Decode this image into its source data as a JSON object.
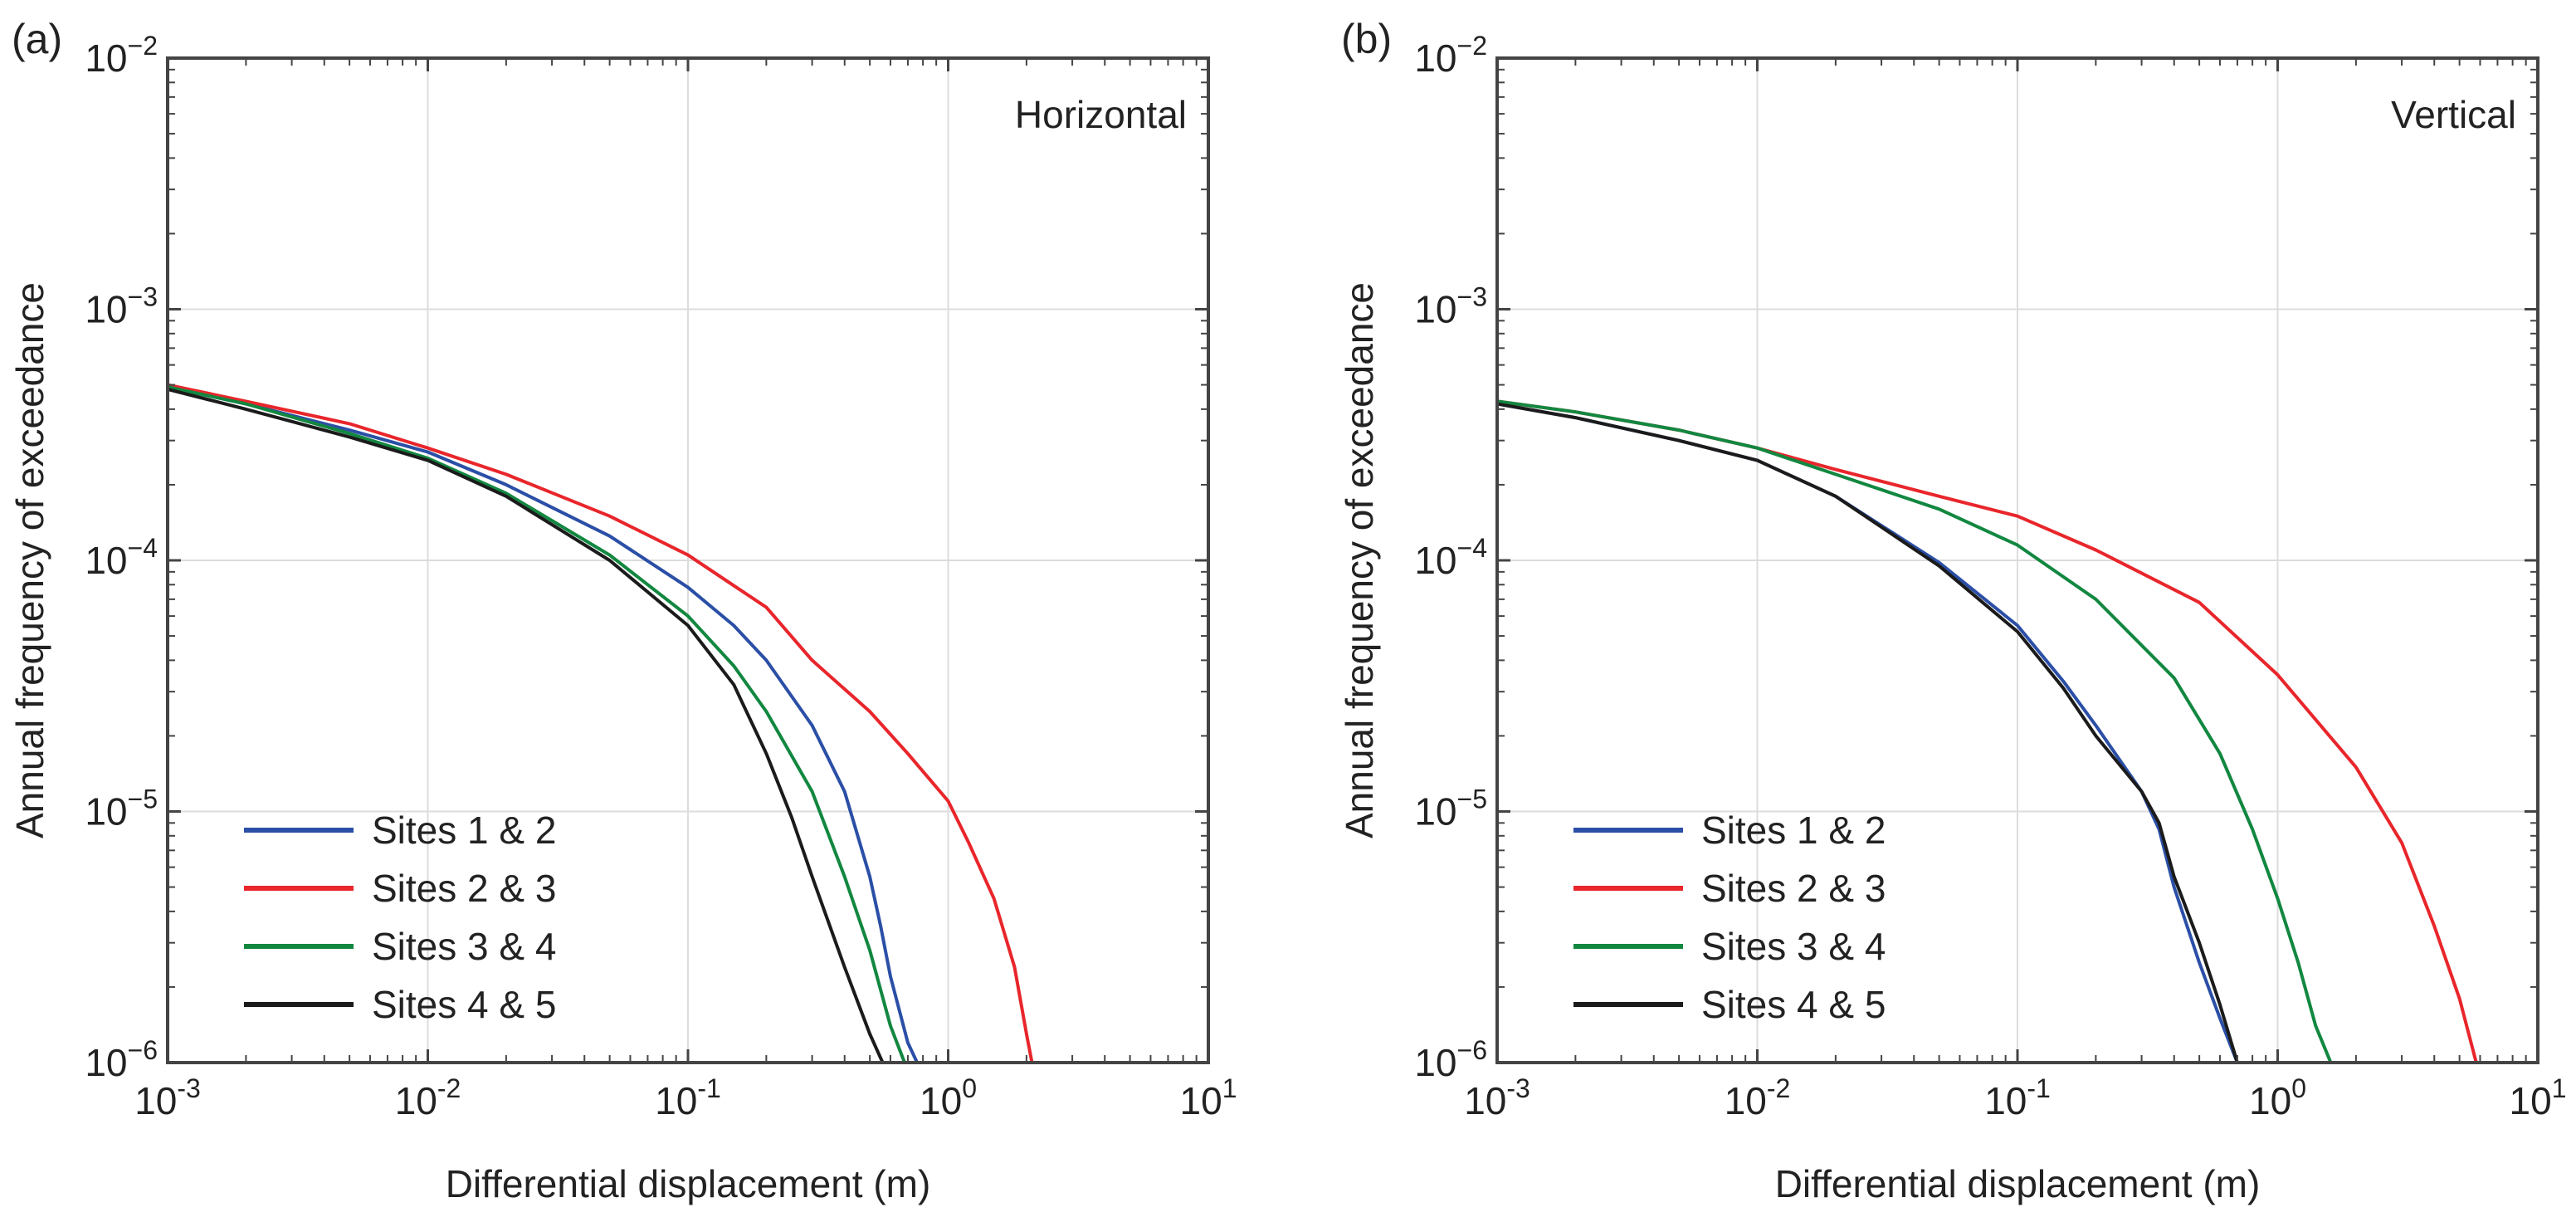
{
  "chart_data": [
    {
      "panel_label": "(a)",
      "type": "line",
      "title": "Horizontal",
      "xlabel": "Differential displacement (m)",
      "ylabel": "Annual frequency of exceedance",
      "xscale": "log",
      "yscale": "log",
      "xlim": [
        0.001,
        10
      ],
      "ylim": [
        1e-06,
        0.01
      ],
      "grid": true,
      "legend_position": "bottom-left",
      "x_ticks": [
        {
          "base": "10",
          "exp": "-3"
        },
        {
          "base": "10",
          "exp": "-2"
        },
        {
          "base": "10",
          "exp": "-1"
        },
        {
          "base": "10",
          "exp": "0"
        },
        {
          "base": "10",
          "exp": "1"
        }
      ],
      "y_ticks": [
        {
          "base": "10",
          "exp": "−6"
        },
        {
          "base": "10",
          "exp": "−5"
        },
        {
          "base": "10",
          "exp": "−4"
        },
        {
          "base": "10",
          "exp": "−3"
        },
        {
          "base": "10",
          "exp": "−2"
        }
      ],
      "series": [
        {
          "name": "Sites 1 & 2",
          "color": "#2b4fa6",
          "x": [
            0.001,
            0.002,
            0.005,
            0.01,
            0.02,
            0.05,
            0.1,
            0.15,
            0.2,
            0.3,
            0.4,
            0.5,
            0.55,
            0.6,
            0.7,
            0.76
          ],
          "y": [
            0.00049,
            0.00042,
            0.00033,
            0.00027,
            0.0002,
            0.000125,
            7.8e-05,
            5.5e-05,
            4e-05,
            2.2e-05,
            1.2e-05,
            5.5e-06,
            3.5e-06,
            2.2e-06,
            1.2e-06,
            1e-06
          ]
        },
        {
          "name": "Sites 2 & 3",
          "color": "#e8262b",
          "x": [
            0.001,
            0.002,
            0.005,
            0.01,
            0.02,
            0.05,
            0.1,
            0.2,
            0.3,
            0.5,
            0.7,
            1.0,
            1.2,
            1.5,
            1.8,
            2.0,
            2.1
          ],
          "y": [
            0.0005,
            0.00043,
            0.00035,
            0.00028,
            0.00022,
            0.00015,
            0.000105,
            6.5e-05,
            4e-05,
            2.5e-05,
            1.7e-05,
            1.1e-05,
            7.5e-06,
            4.5e-06,
            2.4e-06,
            1.3e-06,
            1e-06
          ]
        },
        {
          "name": "Sites 3 & 4",
          "color": "#128740",
          "x": [
            0.001,
            0.002,
            0.005,
            0.01,
            0.02,
            0.05,
            0.1,
            0.15,
            0.2,
            0.3,
            0.4,
            0.5,
            0.6,
            0.68
          ],
          "y": [
            0.00049,
            0.00042,
            0.00032,
            0.000255,
            0.000185,
            0.000105,
            6e-05,
            3.8e-05,
            2.5e-05,
            1.2e-05,
            5.5e-06,
            2.8e-06,
            1.4e-06,
            1e-06
          ]
        },
        {
          "name": "Sites 4 & 5",
          "color": "#1b1b1b",
          "x": [
            0.001,
            0.002,
            0.005,
            0.01,
            0.02,
            0.05,
            0.1,
            0.15,
            0.2,
            0.25,
            0.3,
            0.4,
            0.5,
            0.56
          ],
          "y": [
            0.00048,
            0.0004,
            0.00031,
            0.00025,
            0.00018,
            0.0001,
            5.5e-05,
            3.2e-05,
            1.7e-05,
            9.5e-06,
            5.5e-06,
            2.4e-06,
            1.3e-06,
            1e-06
          ]
        }
      ]
    },
    {
      "panel_label": "(b)",
      "type": "line",
      "title": "Vertical",
      "xlabel": "Differential displacement (m)",
      "ylabel": "Annual frequency of exceedance",
      "xscale": "log",
      "yscale": "log",
      "xlim": [
        0.001,
        10
      ],
      "ylim": [
        1e-06,
        0.01
      ],
      "grid": true,
      "legend_position": "bottom-left",
      "x_ticks": [
        {
          "base": "10",
          "exp": "-3"
        },
        {
          "base": "10",
          "exp": "-2"
        },
        {
          "base": "10",
          "exp": "-1"
        },
        {
          "base": "10",
          "exp": "0"
        },
        {
          "base": "10",
          "exp": "1"
        }
      ],
      "y_ticks": [
        {
          "base": "10",
          "exp": "−6"
        },
        {
          "base": "10",
          "exp": "−5"
        },
        {
          "base": "10",
          "exp": "−4"
        },
        {
          "base": "10",
          "exp": "−3"
        },
        {
          "base": "10",
          "exp": "−2"
        }
      ],
      "series": [
        {
          "name": "Sites 1 & 2",
          "color": "#2b4fa6",
          "x": [
            0.001,
            0.002,
            0.005,
            0.01,
            0.02,
            0.05,
            0.1,
            0.15,
            0.2,
            0.3,
            0.35,
            0.4,
            0.5,
            0.6,
            0.7
          ],
          "y": [
            0.00042,
            0.00037,
            0.0003,
            0.00025,
            0.00018,
            9.8e-05,
            5.5e-05,
            3.3e-05,
            2.2e-05,
            1.2e-05,
            8.5e-06,
            5e-06,
            2.5e-06,
            1.5e-06,
            1e-06
          ]
        },
        {
          "name": "Sites 2 & 3",
          "color": "#e8262b",
          "x": [
            0.001,
            0.002,
            0.005,
            0.01,
            0.02,
            0.05,
            0.1,
            0.2,
            0.5,
            1.0,
            2.0,
            3.0,
            4.0,
            5.0,
            5.8
          ],
          "y": [
            0.00043,
            0.00039,
            0.00033,
            0.00028,
            0.00023,
            0.00018,
            0.00015,
            0.00011,
            6.8e-05,
            3.5e-05,
            1.5e-05,
            7.5e-06,
            3.5e-06,
            1.8e-06,
            1e-06
          ]
        },
        {
          "name": "Sites 3 & 4",
          "color": "#128740",
          "x": [
            0.001,
            0.002,
            0.005,
            0.01,
            0.02,
            0.05,
            0.1,
            0.2,
            0.4,
            0.6,
            0.8,
            1.0,
            1.2,
            1.4,
            1.6
          ],
          "y": [
            0.00043,
            0.00039,
            0.00033,
            0.00028,
            0.00022,
            0.00016,
            0.000115,
            7e-05,
            3.4e-05,
            1.7e-05,
            8.5e-06,
            4.5e-06,
            2.5e-06,
            1.4e-06,
            1e-06
          ]
        },
        {
          "name": "Sites 4 & 5",
          "color": "#1b1b1b",
          "x": [
            0.001,
            0.002,
            0.005,
            0.01,
            0.02,
            0.05,
            0.1,
            0.15,
            0.2,
            0.3,
            0.35,
            0.4,
            0.5,
            0.6,
            0.7
          ],
          "y": [
            0.00042,
            0.00037,
            0.0003,
            0.00025,
            0.00018,
            9.5e-05,
            5.2e-05,
            3.1e-05,
            2e-05,
            1.2e-05,
            9e-06,
            5.5e-06,
            3e-06,
            1.7e-06,
            1e-06
          ]
        }
      ]
    }
  ]
}
